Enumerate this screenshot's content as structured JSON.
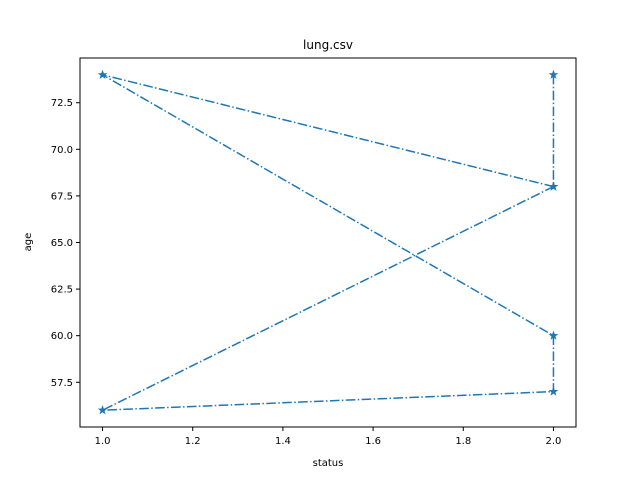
{
  "chart_data": {
    "type": "line",
    "title": "lung.csv",
    "xlabel": "status",
    "ylabel": "age",
    "xlim": [
      0.95,
      2.05
    ],
    "ylim": [
      55.1,
      74.9
    ],
    "x_ticks": [
      1.0,
      1.2,
      1.4,
      1.6,
      1.8,
      2.0
    ],
    "x_tick_labels": [
      "1.0",
      "1.2",
      "1.4",
      "1.6",
      "1.8",
      "2.0"
    ],
    "y_ticks": [
      57.5,
      60.0,
      62.5,
      65.0,
      67.5,
      70.0,
      72.5
    ],
    "y_tick_labels": [
      "57.5",
      "60.0",
      "62.5",
      "65.0",
      "67.5",
      "70.0",
      "72.5"
    ],
    "grid": false,
    "series": [
      {
        "name": "age",
        "color": "#1f77b4",
        "line_style": "dashdot",
        "marker": "star",
        "x": [
          2,
          2,
          1,
          2,
          2,
          1,
          2
        ],
        "y": [
          74,
          68,
          74,
          60,
          57,
          56,
          68
        ]
      }
    ]
  }
}
